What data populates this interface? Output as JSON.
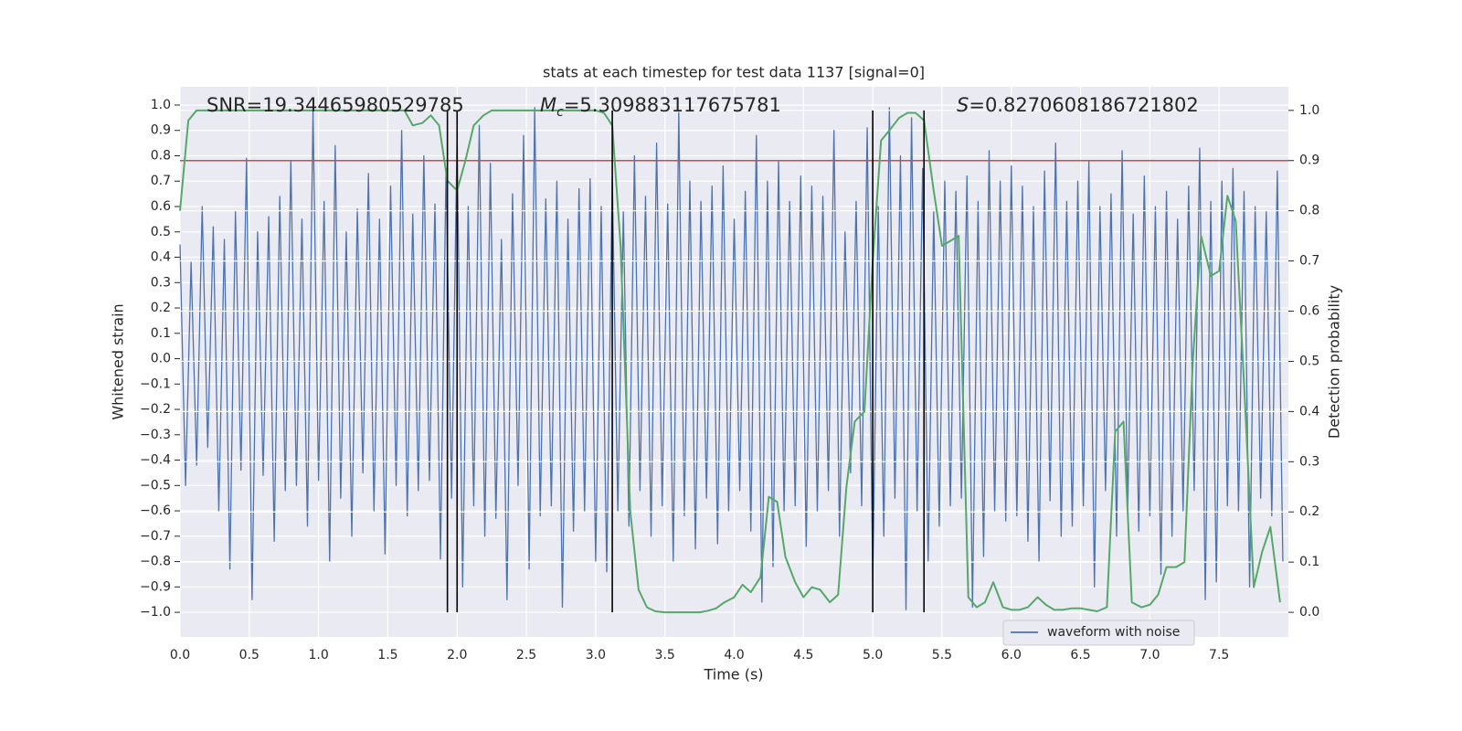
{
  "chart_data": {
    "type": "line",
    "title": "stats at each timestep for test data 1137 [signal=0]",
    "xlabel": "Time (s)",
    "ylabel": "Whitened strain",
    "y2label": "Detection probability",
    "grid": true,
    "legend": "lower right",
    "xlim": [
      0,
      8.0
    ],
    "ylim": [
      -1.097,
      1.072
    ],
    "y2lim": [
      -0.049,
      1.047
    ],
    "xticks": [
      {
        "value": 0,
        "label": "0.0"
      },
      {
        "value": 0.5,
        "label": "0.5"
      },
      {
        "value": 1,
        "label": "1.0"
      },
      {
        "value": 1.5,
        "label": "1.5"
      },
      {
        "value": 2,
        "label": "2.0"
      },
      {
        "value": 2.5,
        "label": "2.5"
      },
      {
        "value": 3,
        "label": "3.0"
      },
      {
        "value": 3.5,
        "label": "3.5"
      },
      {
        "value": 4,
        "label": "4.0"
      },
      {
        "value": 4.5,
        "label": "4.5"
      },
      {
        "value": 5,
        "label": "5.0"
      },
      {
        "value": 5.5,
        "label": "5.5"
      },
      {
        "value": 6,
        "label": "6.0"
      },
      {
        "value": 6.5,
        "label": "6.5"
      },
      {
        "value": 7,
        "label": "7.0"
      },
      {
        "value": 7.5,
        "label": "7.5"
      }
    ],
    "yticks": [
      {
        "value": -1,
        "label": "−1.0"
      },
      {
        "value": -0.9,
        "label": "−0.9"
      },
      {
        "value": -0.8,
        "label": "−0.8"
      },
      {
        "value": -0.7,
        "label": "−0.7"
      },
      {
        "value": -0.6,
        "label": "−0.6"
      },
      {
        "value": -0.5,
        "label": "−0.5"
      },
      {
        "value": -0.4,
        "label": "−0.4"
      },
      {
        "value": -0.3,
        "label": "−0.3"
      },
      {
        "value": -0.2,
        "label": "−0.2"
      },
      {
        "value": -0.1,
        "label": "−0.1"
      },
      {
        "value": 0,
        "label": "0.0"
      },
      {
        "value": 0.1,
        "label": "0.1"
      },
      {
        "value": 0.2,
        "label": "0.2"
      },
      {
        "value": 0.3,
        "label": "0.3"
      },
      {
        "value": 0.4,
        "label": "0.4"
      },
      {
        "value": 0.5,
        "label": "0.5"
      },
      {
        "value": 0.6,
        "label": "0.6"
      },
      {
        "value": 0.7,
        "label": "0.7"
      },
      {
        "value": 0.8,
        "label": "0.8"
      },
      {
        "value": 0.9,
        "label": "0.9"
      },
      {
        "value": 1,
        "label": "1.0"
      }
    ],
    "y2ticks": [
      {
        "value": 0,
        "label": "0.0"
      },
      {
        "value": 0.1,
        "label": "0.1"
      },
      {
        "value": 0.2,
        "label": "0.2"
      },
      {
        "value": 0.3,
        "label": "0.3"
      },
      {
        "value": 0.4,
        "label": "0.4"
      },
      {
        "value": 0.5,
        "label": "0.5"
      },
      {
        "value": 0.6,
        "label": "0.6"
      },
      {
        "value": 0.7,
        "label": "0.7"
      },
      {
        "value": 0.8,
        "label": "0.8"
      },
      {
        "value": 0.9,
        "label": "0.9"
      },
      {
        "value": 1,
        "label": "1.0"
      }
    ],
    "annotations": [
      {
        "text": "SNR=19.34465980529785"
      },
      {
        "symbol": "M",
        "subscript": "c",
        "text": "=5.309883117675781"
      },
      {
        "symbol": "S",
        "text": "=0.8270608186721802"
      }
    ],
    "threshold": {
      "value": 0.9,
      "axis": "y2",
      "color": "#c44e52"
    },
    "vlines": {
      "x": [
        1.93,
        2.0,
        3.12,
        5.0,
        5.37
      ],
      "color": "#000000"
    },
    "series": [
      {
        "name": "waveform with noise",
        "color": "#4c72b0",
        "x": [
          0,
          0.04,
          0.08,
          0.12,
          0.16,
          0.2,
          0.24,
          0.28,
          0.32,
          0.36,
          0.4,
          0.44,
          0.48,
          0.52,
          0.56,
          0.6,
          0.64,
          0.68,
          0.72,
          0.76,
          0.8,
          0.84,
          0.88,
          0.92,
          0.96,
          1.0,
          1.04,
          1.08,
          1.12,
          1.16,
          1.2,
          1.24,
          1.28,
          1.32,
          1.36,
          1.4,
          1.44,
          1.48,
          1.52,
          1.56,
          1.6,
          1.64,
          1.68,
          1.72,
          1.76,
          1.8,
          1.84,
          1.88,
          1.92,
          1.96,
          2.0,
          2.04,
          2.08,
          2.12,
          2.16,
          2.2,
          2.24,
          2.28,
          2.32,
          2.36,
          2.4,
          2.44,
          2.48,
          2.52,
          2.56,
          2.6,
          2.64,
          2.68,
          2.72,
          2.76,
          2.8,
          2.84,
          2.88,
          2.92,
          2.96,
          3.0,
          3.04,
          3.08,
          3.12,
          3.16,
          3.2,
          3.24,
          3.28,
          3.32,
          3.36,
          3.4,
          3.44,
          3.48,
          3.52,
          3.56,
          3.6,
          3.64,
          3.68,
          3.72,
          3.76,
          3.8,
          3.84,
          3.88,
          3.92,
          3.96,
          4.0,
          4.04,
          4.08,
          4.12,
          4.16,
          4.2,
          4.24,
          4.28,
          4.32,
          4.36,
          4.4,
          4.44,
          4.48,
          4.52,
          4.56,
          4.6,
          4.64,
          4.68,
          4.72,
          4.76,
          4.8,
          4.84,
          4.88,
          4.92,
          4.96,
          5.0,
          5.04,
          5.08,
          5.12,
          5.16,
          5.2,
          5.24,
          5.28,
          5.32,
          5.36,
          5.4,
          5.44,
          5.48,
          5.52,
          5.56,
          5.6,
          5.64,
          5.68,
          5.72,
          5.76,
          5.8,
          5.84,
          5.88,
          5.92,
          5.96,
          6.0,
          6.04,
          6.08,
          6.12,
          6.16,
          6.2,
          6.24,
          6.28,
          6.32,
          6.36,
          6.4,
          6.44,
          6.48,
          6.52,
          6.56,
          6.6,
          6.64,
          6.68,
          6.72,
          6.76,
          6.8,
          6.84,
          6.88,
          6.92,
          6.96,
          7.0,
          7.04,
          7.08,
          7.12,
          7.16,
          7.2,
          7.24,
          7.28,
          7.32,
          7.36,
          7.4,
          7.44,
          7.48,
          7.52,
          7.56,
          7.6,
          7.64,
          7.68,
          7.72,
          7.76,
          7.8,
          7.84,
          7.88,
          7.92,
          7.96
        ],
        "values": [
          0.45,
          -0.5,
          0.38,
          -0.42,
          0.6,
          -0.35,
          0.52,
          -0.6,
          0.47,
          -0.83,
          0.58,
          -0.44,
          0.79,
          -0.95,
          0.5,
          -0.46,
          0.56,
          -0.72,
          0.64,
          -0.52,
          0.78,
          -0.5,
          0.55,
          -0.66,
          0.98,
          -0.48,
          0.62,
          -0.8,
          0.84,
          -0.55,
          0.5,
          -0.7,
          0.59,
          -0.45,
          0.73,
          -0.6,
          0.55,
          -0.77,
          0.68,
          -0.5,
          0.9,
          -0.62,
          0.57,
          -0.52,
          0.8,
          -0.48,
          0.61,
          -0.79,
          0.75,
          -0.55,
          0.88,
          -0.9,
          0.6,
          -0.58,
          0.92,
          -0.7,
          0.77,
          -0.63,
          0.47,
          -0.95,
          0.65,
          -0.5,
          0.88,
          -0.83,
          0.99,
          -0.62,
          0.63,
          -0.58,
          0.7,
          -0.98,
          0.55,
          -0.68,
          0.67,
          -0.6,
          0.71,
          -0.8,
          0.6,
          -0.84,
          0.72,
          -0.6,
          0.58,
          -0.66,
          0.8,
          -0.52,
          0.64,
          -0.7,
          0.85,
          -0.58,
          0.61,
          -0.8,
          0.97,
          -0.62,
          0.7,
          -0.75,
          0.62,
          -0.55,
          0.68,
          -0.73,
          0.76,
          -0.6,
          0.55,
          -0.52,
          0.66,
          -0.68,
          0.88,
          -0.96,
          0.7,
          -0.82,
          0.78,
          -0.6,
          0.62,
          -0.58,
          0.72,
          -0.74,
          0.68,
          -0.6,
          0.64,
          -0.52,
          0.9,
          -0.7,
          0.5,
          -0.45,
          0.62,
          -0.58,
          0.91,
          -0.88,
          0.6,
          -0.7,
          0.99,
          -0.55,
          0.8,
          -0.99,
          0.95,
          -0.6,
          0.75,
          -0.8,
          0.58,
          -0.66,
          0.7,
          -0.58,
          0.66,
          -0.55,
          0.72,
          -0.98,
          0.62,
          -0.78,
          0.82,
          -0.6,
          0.7,
          -0.64,
          0.76,
          -0.62,
          0.68,
          -0.72,
          0.6,
          -0.8,
          0.74,
          -0.56,
          0.85,
          -0.7,
          0.62,
          -0.66,
          0.7,
          -0.58,
          0.78,
          -0.9,
          0.6,
          -0.52,
          0.65,
          -0.7,
          0.82,
          -0.6,
          0.57,
          -0.68,
          0.72,
          -0.62,
          0.6,
          -0.85,
          0.66,
          -0.7,
          0.55,
          -0.6,
          0.68,
          -0.52,
          0.83,
          -0.95,
          0.62,
          -0.88,
          0.7,
          -0.58,
          0.75,
          -0.6,
          0.66,
          -0.9,
          0.6,
          -0.55,
          0.58,
          -0.62,
          0.74,
          -0.8
        ]
      },
      {
        "color": "#55a868",
        "axis": "y2",
        "x": [
          0,
          0.06,
          0.12,
          0.25,
          0.5,
          0.75,
          1.0,
          1.25,
          1.5,
          1.62,
          1.68,
          1.75,
          1.81,
          1.87,
          1.93,
          2.0,
          2.06,
          2.12,
          2.19,
          2.25,
          2.5,
          2.75,
          3.0,
          3.06,
          3.12,
          3.18,
          3.25,
          3.31,
          3.37,
          3.43,
          3.5,
          3.62,
          3.75,
          3.81,
          3.87,
          3.93,
          4.0,
          4.06,
          4.12,
          4.19,
          4.25,
          4.31,
          4.37,
          4.44,
          4.5,
          4.56,
          4.62,
          4.69,
          4.75,
          4.81,
          4.87,
          4.94,
          5.0,
          5.06,
          5.12,
          5.19,
          5.25,
          5.31,
          5.37,
          5.44,
          5.5,
          5.56,
          5.62,
          5.69,
          5.75,
          5.81,
          5.87,
          5.94,
          6.0,
          6.06,
          6.12,
          6.19,
          6.25,
          6.31,
          6.37,
          6.44,
          6.5,
          6.56,
          6.62,
          6.69,
          6.75,
          6.81,
          6.87,
          6.94,
          7.0,
          7.06,
          7.12,
          7.19,
          7.25,
          7.31,
          7.37,
          7.44,
          7.5,
          7.56,
          7.62,
          7.69,
          7.75,
          7.81,
          7.87,
          7.94
        ],
        "values": [
          0.8,
          0.98,
          1.0,
          1.0,
          1.0,
          1.0,
          1.0,
          1.0,
          1.0,
          1.0,
          0.97,
          0.975,
          0.99,
          0.97,
          0.86,
          0.84,
          0.9,
          0.97,
          0.99,
          1.0,
          1.0,
          1.0,
          1.0,
          0.995,
          0.97,
          0.73,
          0.2,
          0.045,
          0.01,
          0.002,
          0.0,
          0.0,
          0.0,
          0.003,
          0.008,
          0.02,
          0.03,
          0.055,
          0.04,
          0.07,
          0.23,
          0.22,
          0.11,
          0.06,
          0.03,
          0.05,
          0.045,
          0.02,
          0.035,
          0.25,
          0.38,
          0.4,
          0.7,
          0.94,
          0.96,
          0.985,
          0.995,
          0.995,
          0.98,
          0.84,
          0.73,
          0.74,
          0.75,
          0.03,
          0.01,
          0.02,
          0.06,
          0.01,
          0.005,
          0.005,
          0.01,
          0.03,
          0.015,
          0.005,
          0.005,
          0.008,
          0.008,
          0.005,
          0.002,
          0.01,
          0.36,
          0.38,
          0.02,
          0.01,
          0.015,
          0.035,
          0.09,
          0.09,
          0.1,
          0.5,
          0.75,
          0.67,
          0.68,
          0.83,
          0.78,
          0.4,
          0.05,
          0.12,
          0.17,
          0.02
        ]
      }
    ]
  }
}
